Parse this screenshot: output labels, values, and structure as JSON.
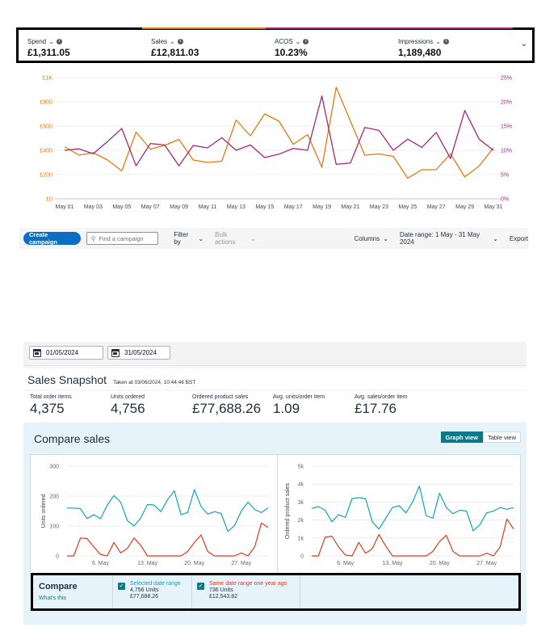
{
  "metrics": [
    {
      "label": "Spend",
      "value": "£1,311.05",
      "color": ""
    },
    {
      "label": "Sales",
      "value": "£12,811.03",
      "color": "#e47911"
    },
    {
      "label": "ACOS",
      "value": "10.23%",
      "color": "#a3277f"
    },
    {
      "label": "Impressions",
      "value": "1,189,480",
      "color": "#a3277f"
    }
  ],
  "toolbar": {
    "create": "Create campaign",
    "find_placeholder": "Find a campaign",
    "filter": "Filter by",
    "bulk": "Bulk actions",
    "columns": "Columns",
    "date_range": "Date range: 1 May - 31 May 2024",
    "export": "Export"
  },
  "dates": {
    "start": "01/05/2024",
    "end": "31/05/2024"
  },
  "snapshot": {
    "title": "Sales Snapshot",
    "taken": "Taken at 03/06/2024, 10:44:46 BST",
    "kpis": [
      {
        "label": "Total order items",
        "value": "4,375"
      },
      {
        "label": "Units ordered",
        "value": "4,756"
      },
      {
        "label": "Ordered product sales",
        "value": "£77,688.26"
      },
      {
        "label": "Avg. units/order item",
        "value": "1.09"
      },
      {
        "label": "Avg. sales/order item",
        "value": "£17.76"
      }
    ]
  },
  "compare": {
    "title": "Compare sales",
    "graph_view": "Graph view",
    "table_view": "Table view",
    "legend_title": "Compare",
    "whats_this": "What's this",
    "selected": {
      "label": "Selected date range",
      "units": "4,756 Units",
      "amount": "£77,688.26",
      "color": "#14a3b4"
    },
    "last_year": {
      "label": "Same date range one year ago",
      "units": "736 Units",
      "amount": "£12,543.82",
      "color": "#de3b1a"
    }
  },
  "chart_data": [
    {
      "type": "line",
      "x": [
        "May 01",
        "May 02",
        "May 03",
        "May 04",
        "May 05",
        "May 06",
        "May 07",
        "May 08",
        "May 09",
        "May 10",
        "May 11",
        "May 12",
        "May 13",
        "May 14",
        "May 15",
        "May 16",
        "May 17",
        "May 18",
        "May 19",
        "May 20",
        "May 21",
        "May 22",
        "May 23",
        "May 24",
        "May 25",
        "May 26",
        "May 27",
        "May 28",
        "May 29",
        "May 30",
        "May 31"
      ],
      "x_ticks": [
        "May 01",
        "May 03",
        "May 05",
        "May 07",
        "May 09",
        "May 11",
        "May 13",
        "May 15",
        "May 17",
        "May 19",
        "May 21",
        "May 23",
        "May 25",
        "May 27",
        "May 29",
        "May 31"
      ],
      "y_left_ticks": [
        "£0",
        "£200",
        "£400",
        "£600",
        "£800",
        "£1K"
      ],
      "y_right_ticks": [
        "0%",
        "5%",
        "10%",
        "15%",
        "20%",
        "25%"
      ],
      "ylim_left": [
        0,
        1000
      ],
      "ylim_right": [
        0,
        25
      ],
      "series": [
        {
          "name": "Sales",
          "axis": "left",
          "color": "#e47911",
          "values": [
            430,
            360,
            380,
            320,
            230,
            550,
            410,
            440,
            490,
            320,
            300,
            310,
            650,
            520,
            700,
            640,
            450,
            530,
            260,
            920,
            640,
            360,
            370,
            350,
            170,
            240,
            240,
            370,
            180,
            270,
            420
          ]
        },
        {
          "name": "ACOS",
          "axis": "right",
          "color": "#a3277f",
          "values": [
            10,
            10.3,
            9.3,
            11.8,
            14.5,
            6.8,
            11.4,
            11.1,
            6.8,
            11,
            10.5,
            12.6,
            10,
            11.1,
            8.5,
            9.2,
            10.4,
            10,
            21.2,
            7.1,
            7.4,
            14.7,
            14.1,
            10,
            12.3,
            10.6,
            13.7,
            8.3,
            18.2,
            12.3,
            10
          ]
        }
      ]
    },
    {
      "type": "line",
      "x": [
        "1",
        "2",
        "3",
        "4",
        "5",
        "6",
        "7",
        "8",
        "9",
        "10",
        "11",
        "12",
        "13",
        "14",
        "15",
        "16",
        "17",
        "18",
        "19",
        "20",
        "21",
        "22",
        "23",
        "24",
        "25",
        "26",
        "27",
        "28",
        "29",
        "30",
        "31"
      ],
      "x_ticks": [
        "6. May",
        "13. May",
        "20. May",
        "27. May"
      ],
      "ylabel": "Units ordered",
      "y_ticks": [
        "0",
        "100",
        "200",
        "300"
      ],
      "ylim": [
        0,
        300
      ],
      "series": [
        {
          "name": "Selected date range",
          "color": "#14a3b4",
          "values": [
            160,
            160,
            158,
            125,
            138,
            125,
            170,
            202,
            180,
            118,
            100,
            127,
            172,
            170,
            148,
            188,
            218,
            138,
            145,
            222,
            165,
            140,
            148,
            142,
            82,
            102,
            150,
            180,
            155,
            145,
            160
          ]
        },
        {
          "name": "Same date range one year ago",
          "color": "#de3b1a",
          "values": [
            0,
            0,
            60,
            58,
            30,
            5,
            0,
            45,
            10,
            25,
            60,
            35,
            0,
            0,
            0,
            0,
            0,
            0,
            15,
            45,
            70,
            15,
            0,
            0,
            0,
            0,
            10,
            0,
            30,
            110,
            95
          ]
        }
      ]
    },
    {
      "type": "line",
      "x": [
        "1",
        "2",
        "3",
        "4",
        "5",
        "6",
        "7",
        "8",
        "9",
        "10",
        "11",
        "12",
        "13",
        "14",
        "15",
        "16",
        "17",
        "18",
        "19",
        "20",
        "21",
        "22",
        "23",
        "24",
        "25",
        "26",
        "27",
        "28",
        "29",
        "30",
        "31"
      ],
      "x_ticks": [
        "6. May",
        "13. May",
        "20. May",
        "27. May"
      ],
      "ylabel": "Ordered product sales",
      "y_ticks": [
        "0",
        "1k",
        "2k",
        "3k",
        "4k",
        "5k"
      ],
      "ylim": [
        0,
        5000
      ],
      "series": [
        {
          "name": "Selected date range",
          "color": "#14a3b4",
          "values": [
            2650,
            2750,
            2550,
            1900,
            2300,
            2150,
            3200,
            3250,
            3200,
            1900,
            1500,
            2100,
            2700,
            2800,
            2400,
            3000,
            3900,
            2250,
            2100,
            3500,
            2700,
            2350,
            2550,
            2500,
            1400,
            1750,
            2400,
            2500,
            2700,
            2600,
            2700
          ]
        },
        {
          "name": "Same date range one year ago",
          "color": "#de3b1a",
          "values": [
            0,
            0,
            1050,
            1100,
            500,
            50,
            0,
            750,
            150,
            400,
            1200,
            550,
            0,
            0,
            0,
            0,
            0,
            0,
            250,
            800,
            1150,
            250,
            0,
            0,
            0,
            0,
            150,
            0,
            500,
            2050,
            1500
          ]
        }
      ]
    }
  ]
}
